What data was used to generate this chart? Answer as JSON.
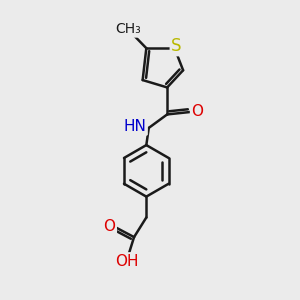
{
  "background_color": "#ebebeb",
  "bond_color": "#1a1a1a",
  "bond_width": 1.8,
  "atom_colors": {
    "S": "#b8b800",
    "O": "#dd0000",
    "N": "#0000cc",
    "C": "#1a1a1a",
    "H": "#606060"
  },
  "font_size": 11,
  "xlim": [
    0,
    10
  ],
  "ylim": [
    0,
    12
  ],
  "figsize": [
    3.0,
    3.0
  ],
  "dpi": 100
}
